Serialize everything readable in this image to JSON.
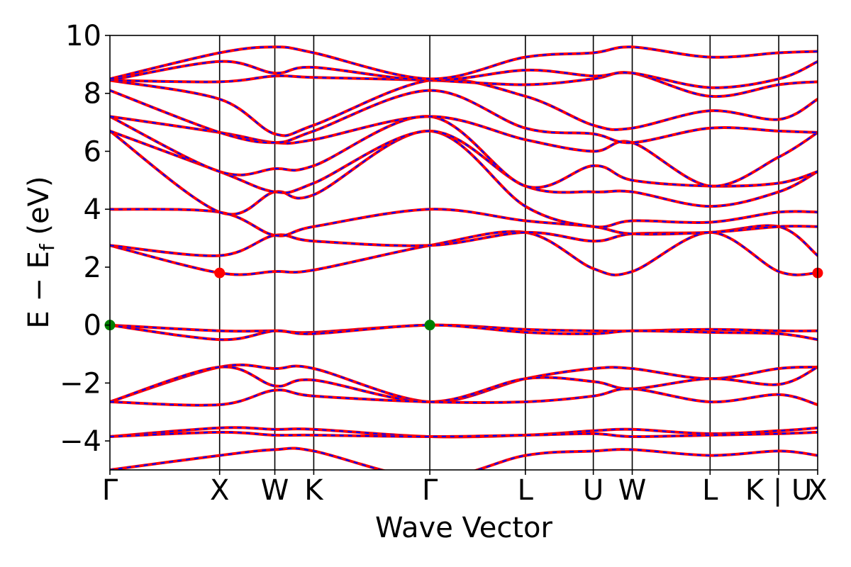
{
  "chart_data": {
    "type": "line",
    "title": "",
    "xlabel": "Wave Vector",
    "ylabel_main": "E − E",
    "ylabel_sub": "f",
    "ylabel_unit": " (eV)",
    "ylim": [
      -5,
      10
    ],
    "yticks": [
      {
        "value": -4,
        "label": "−4"
      },
      {
        "value": -2,
        "label": "−2"
      },
      {
        "value": 0,
        "label": "0"
      },
      {
        "value": 2,
        "label": "2"
      },
      {
        "value": 4,
        "label": "4"
      },
      {
        "value": 6,
        "label": "6"
      },
      {
        "value": 8,
        "label": "8"
      },
      {
        "value": 10,
        "label": "10"
      }
    ],
    "kpath_range": [
      0,
      1
    ],
    "kpoints": [
      {
        "label": "Γ",
        "pos": 0.0
      },
      {
        "label": "X",
        "pos": 0.155
      },
      {
        "label": "W",
        "pos": 0.233
      },
      {
        "label": "K",
        "pos": 0.288
      },
      {
        "label": "Γ",
        "pos": 0.452
      },
      {
        "label": "L",
        "pos": 0.587
      },
      {
        "label": "U",
        "pos": 0.683
      },
      {
        "label": "W",
        "pos": 0.738
      },
      {
        "label": "L",
        "pos": 0.848
      },
      {
        "label": "K | U",
        "pos": 0.945
      },
      {
        "label": "X",
        "pos": 1.0
      }
    ],
    "colors": {
      "dft": "#0000ff",
      "interpolated": "#ff0000",
      "vbm": "#008000",
      "cbm": "#ff0000"
    },
    "series": [
      {
        "values": [
          -3.85,
          -3.55,
          -3.6,
          -3.6,
          -3.85,
          -3.8,
          -3.65,
          -3.6,
          -3.75,
          -3.65,
          -3.55
        ]
      },
      {
        "values": [
          -3.85,
          -3.7,
          -3.8,
          -3.8,
          -3.85,
          -3.8,
          -3.75,
          -3.85,
          -3.8,
          -3.75,
          -3.7
        ]
      },
      {
        "values": [
          -2.65,
          -1.45,
          -1.5,
          -1.5,
          -2.65,
          -1.85,
          -1.5,
          -1.5,
          -1.85,
          -1.5,
          -1.45
        ]
      },
      {
        "values": [
          -2.65,
          -1.45,
          -2.1,
          -1.9,
          -2.65,
          -1.85,
          -1.95,
          -2.2,
          -1.85,
          -2.05,
          -1.45
        ]
      },
      {
        "values": [
          -2.65,
          -2.75,
          -2.25,
          -2.45,
          -2.65,
          -2.65,
          -2.45,
          -2.2,
          -2.65,
          -2.4,
          -2.75
        ]
      },
      {
        "values": [
          0.0,
          -0.2,
          -0.2,
          -0.25,
          0.0,
          -0.15,
          -0.2,
          -0.2,
          -0.15,
          -0.2,
          -0.2
        ]
      },
      {
        "values": [
          0.0,
          -0.5,
          -0.2,
          -0.3,
          0.0,
          -0.25,
          -0.3,
          -0.2,
          -0.25,
          -0.3,
          -0.5
        ]
      },
      {
        "values": [
          2.75,
          1.8,
          1.85,
          1.9,
          2.75,
          3.2,
          1.95,
          1.85,
          3.2,
          1.85,
          1.8
        ]
      },
      {
        "values": [
          2.75,
          2.4,
          3.1,
          2.9,
          2.75,
          3.2,
          2.9,
          3.15,
          3.2,
          3.4,
          2.4
        ]
      },
      {
        "values": [
          4.0,
          3.9,
          3.1,
          3.4,
          4.0,
          3.6,
          3.4,
          3.15,
          3.2,
          3.4,
          3.4
        ]
      },
      {
        "values": [
          6.7,
          3.9,
          4.6,
          4.5,
          6.7,
          4.1,
          3.4,
          3.6,
          3.55,
          3.9,
          3.9
        ]
      },
      {
        "values": [
          6.7,
          5.3,
          4.6,
          4.9,
          6.7,
          4.8,
          4.6,
          4.6,
          4.1,
          4.6,
          5.3
        ]
      },
      {
        "values": [
          7.2,
          5.3,
          5.4,
          5.5,
          7.2,
          4.8,
          5.5,
          5.0,
          4.8,
          4.9,
          5.3
        ]
      },
      {
        "values": [
          7.2,
          6.65,
          6.3,
          6.4,
          7.2,
          6.4,
          6.0,
          6.3,
          4.8,
          5.8,
          6.65
        ]
      },
      {
        "values": [
          8.1,
          6.65,
          6.3,
          6.7,
          8.1,
          6.8,
          6.6,
          6.3,
          6.8,
          6.7,
          6.65
        ]
      },
      {
        "values": [
          8.45,
          7.8,
          6.6,
          6.9,
          8.45,
          7.9,
          6.9,
          6.8,
          7.4,
          7.1,
          7.8
        ]
      },
      {
        "values": [
          8.45,
          8.4,
          8.6,
          8.55,
          8.45,
          8.3,
          8.5,
          8.7,
          7.9,
          8.3,
          8.4
        ]
      },
      {
        "values": [
          8.45,
          9.1,
          8.7,
          8.9,
          8.45,
          8.8,
          8.6,
          8.7,
          8.2,
          8.5,
          9.1
        ]
      },
      {
        "values": [
          8.5,
          9.4,
          9.6,
          9.4,
          8.5,
          9.25,
          9.4,
          9.6,
          9.25,
          9.4,
          9.45
        ]
      },
      {
        "values": [
          -5.0,
          -4.5,
          -4.3,
          -4.35,
          -5.3,
          -4.5,
          -4.35,
          -4.3,
          -4.5,
          -4.35,
          -4.5
        ]
      }
    ],
    "markers": [
      {
        "kind": "vbm",
        "x": 0.0,
        "y": 0.0
      },
      {
        "kind": "vbm",
        "x": 0.452,
        "y": 0.0
      },
      {
        "kind": "cbm",
        "x": 0.155,
        "y": 1.8
      },
      {
        "kind": "cbm",
        "x": 1.0,
        "y": 1.8
      }
    ]
  }
}
